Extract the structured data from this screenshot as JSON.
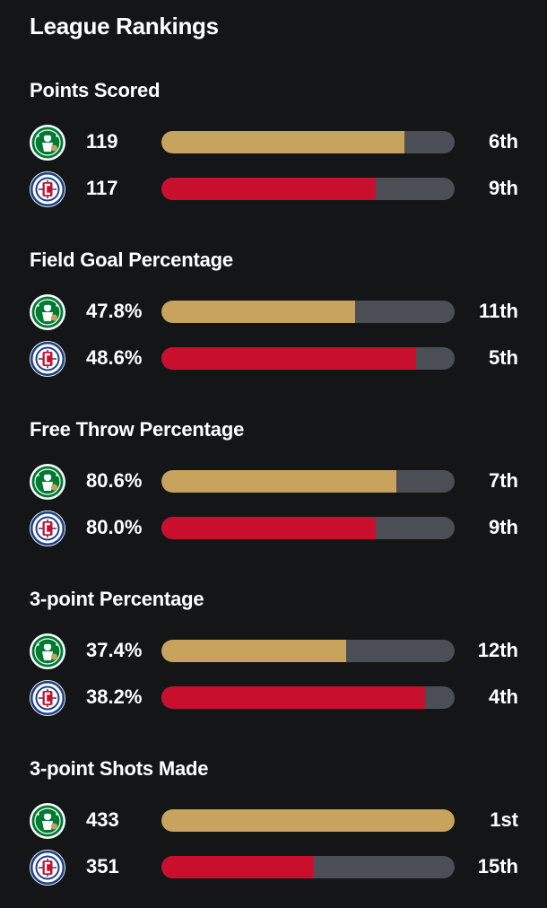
{
  "title": "League Rankings",
  "colors": {
    "background": "#141517",
    "track": "#4b4e55",
    "celtics_bar": "#c7a35d",
    "clippers_bar": "#c8102e",
    "celtics_logo": "#007a33",
    "clippers_logo": "#1d428a"
  },
  "teams": {
    "celtics": {
      "logo_icon": "celtics-logo-icon"
    },
    "clippers": {
      "logo_icon": "clippers-logo-icon"
    }
  },
  "sections": [
    {
      "title": "Points Scored",
      "rows": [
        {
          "team": "celtics",
          "value": "119",
          "fill": 0.83,
          "rank": "6th"
        },
        {
          "team": "clippers",
          "value": "117",
          "fill": 0.73,
          "rank": "9th"
        }
      ]
    },
    {
      "title": "Field Goal Percentage",
      "rows": [
        {
          "team": "celtics",
          "value": "47.8%",
          "fill": 0.66,
          "rank": "11th"
        },
        {
          "team": "clippers",
          "value": "48.6%",
          "fill": 0.87,
          "rank": "5th"
        }
      ]
    },
    {
      "title": "Free Throw Percentage",
      "rows": [
        {
          "team": "celtics",
          "value": "80.6%",
          "fill": 0.8,
          "rank": "7th"
        },
        {
          "team": "clippers",
          "value": "80.0%",
          "fill": 0.73,
          "rank": "9th"
        }
      ]
    },
    {
      "title": "3-point Percentage",
      "rows": [
        {
          "team": "celtics",
          "value": "37.4%",
          "fill": 0.63,
          "rank": "12th"
        },
        {
          "team": "clippers",
          "value": "38.2%",
          "fill": 0.9,
          "rank": "4th"
        }
      ]
    },
    {
      "title": "3-point Shots Made",
      "rows": [
        {
          "team": "celtics",
          "value": "433",
          "fill": 1.0,
          "rank": "1st"
        },
        {
          "team": "clippers",
          "value": "351",
          "fill": 0.52,
          "rank": "15th"
        }
      ]
    }
  ]
}
